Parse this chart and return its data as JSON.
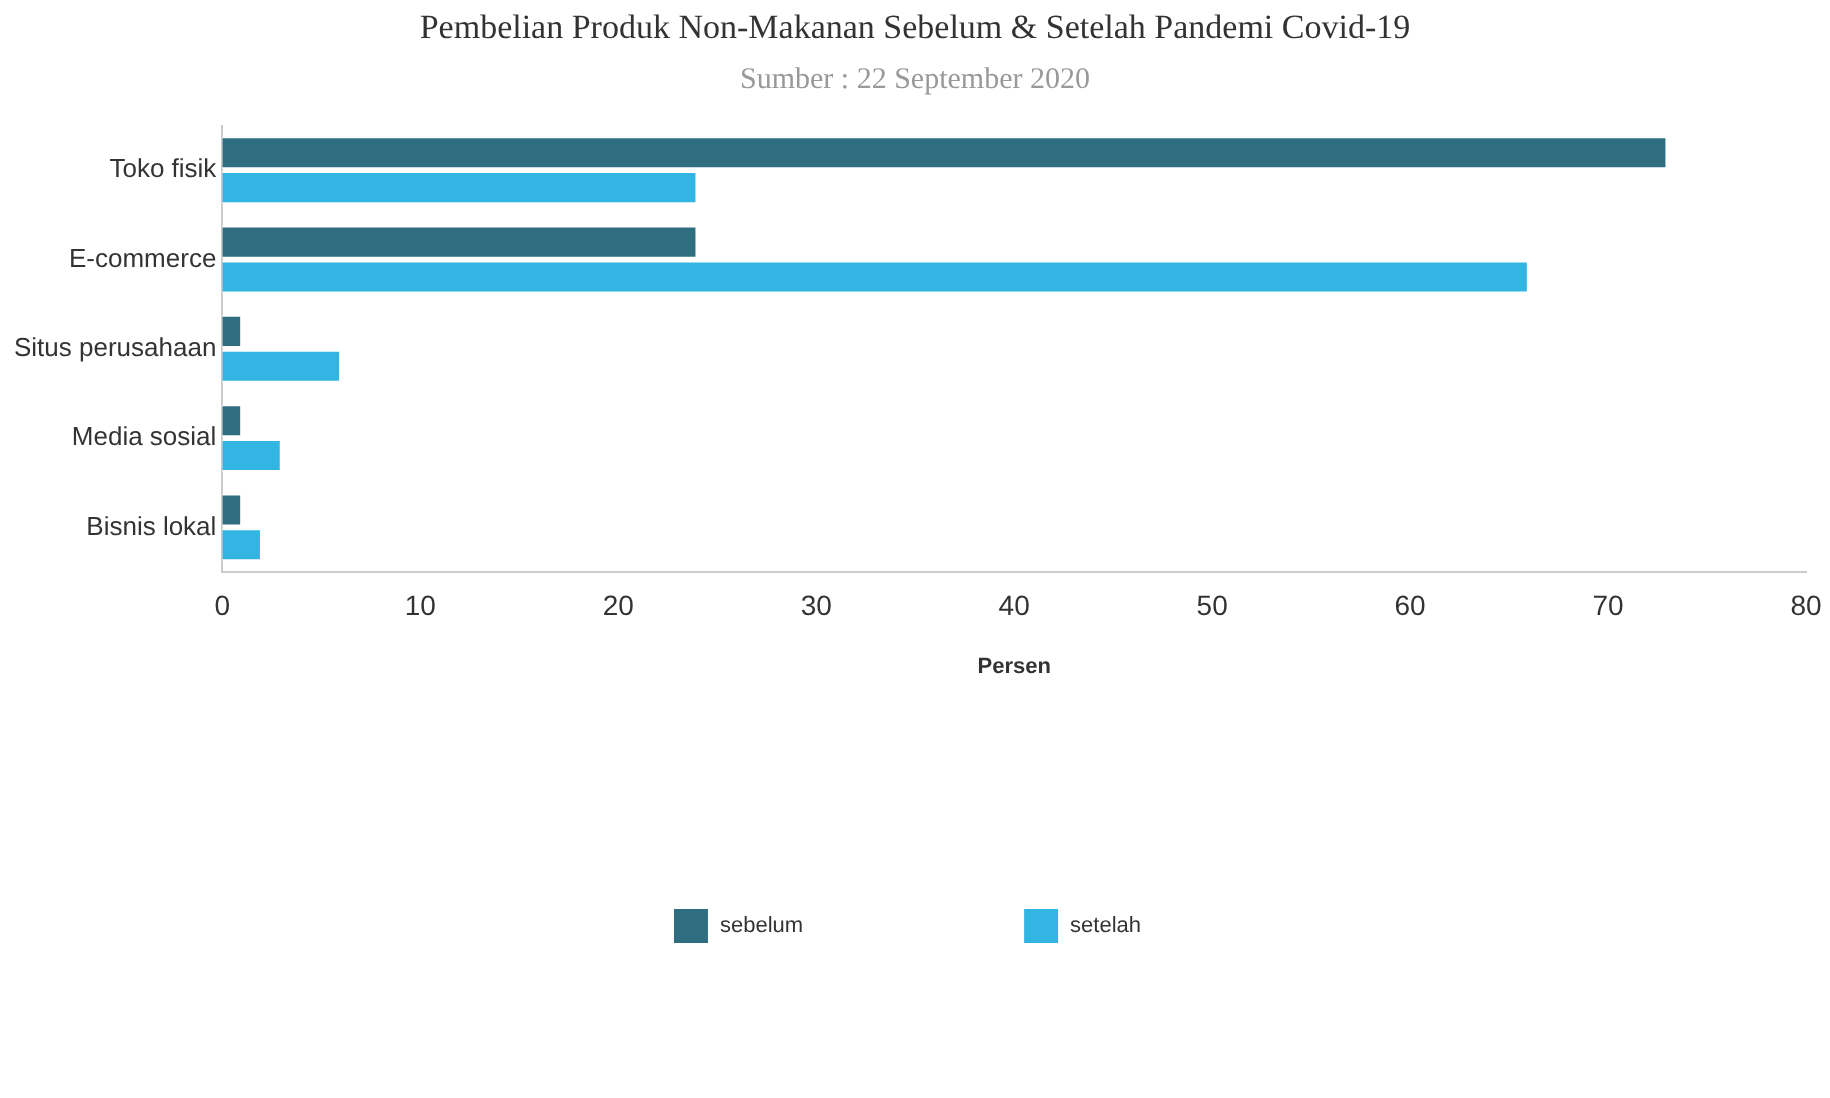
{
  "chart_data": {
    "type": "bar",
    "orientation": "horizontal",
    "title": "Pembelian Produk Non-Makanan Sebelum & Setelah Pandemi Covid-19",
    "subtitle": "Sumber : 22 September 2020",
    "xlabel": "Persen",
    "categories": [
      "Toko fisik",
      "E-commerce",
      "Situs perusahaan",
      "Media sosial",
      "Bisnis lokal"
    ],
    "series": [
      {
        "name": "sebelum",
        "color": "#2e6e80",
        "values": [
          73,
          24,
          1,
          1,
          1
        ]
      },
      {
        "name": "setelah",
        "color": "#33b5e3",
        "values": [
          24,
          66,
          6,
          3,
          2
        ]
      }
    ],
    "xlim": [
      0,
      80
    ],
    "xticks": [
      0,
      10,
      20,
      30,
      40,
      50,
      60,
      70,
      80
    ],
    "grid": false,
    "legend": "bottom"
  }
}
